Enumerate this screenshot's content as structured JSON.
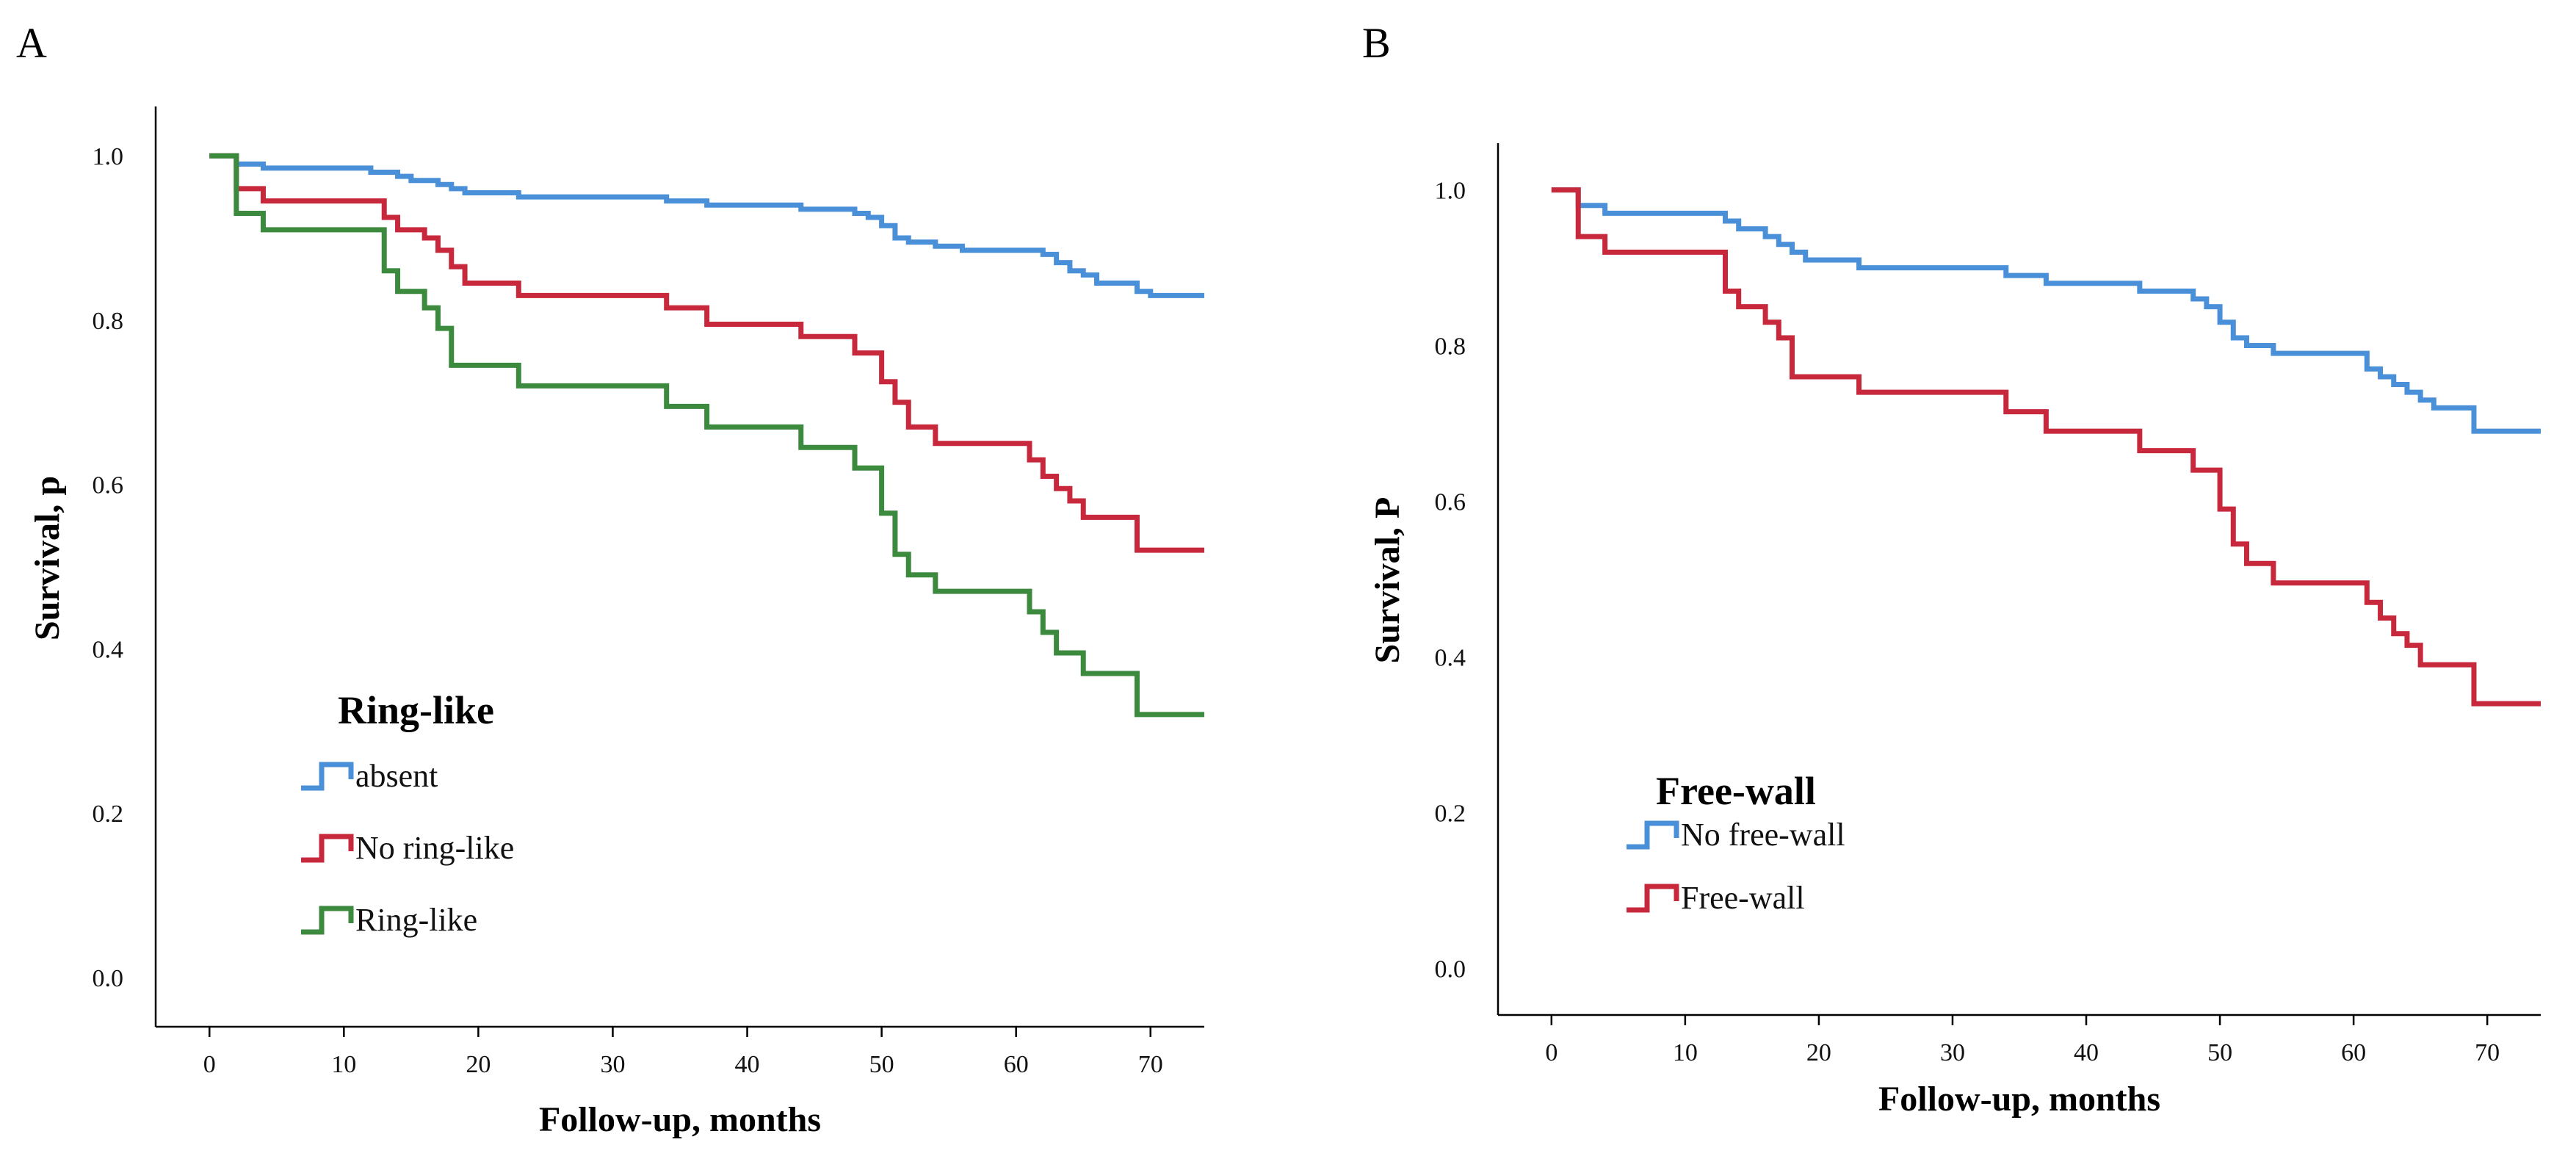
{
  "colors": {
    "absent": "#4a90d9",
    "no_ring": "#c8283c",
    "ring": "#3b8a3e",
    "no_free_wall": "#4a90d9",
    "free_wall": "#c8283c"
  },
  "chart_data": [
    {
      "type": "line",
      "panel_label": "A",
      "xlabel": "Follow-up, months",
      "ylabel": "Survival, p",
      "xlim": [
        -4,
        74
      ],
      "ylim": [
        -0.06,
        1.06
      ],
      "xticks": [
        0,
        10,
        20,
        30,
        40,
        50,
        60,
        70
      ],
      "xtick_labels": [
        "0",
        "10",
        "20",
        "30",
        "40",
        "50",
        "60",
        "70"
      ],
      "yticks": [
        0.0,
        0.2,
        0.4,
        0.6,
        0.8,
        1.0
      ],
      "ytick_labels": [
        "0.0",
        "0.2",
        "0.4",
        "0.6",
        "0.8",
        "1.0"
      ],
      "legend_title": "Ring-like",
      "series": [
        {
          "name": "absent",
          "color": "#4a90d9",
          "points": [
            [
              0,
              1.0
            ],
            [
              2,
              0.99
            ],
            [
              4,
              0.985
            ],
            [
              12,
              0.98
            ],
            [
              14,
              0.975
            ],
            [
              15,
              0.97
            ],
            [
              17,
              0.965
            ],
            [
              18,
              0.96
            ],
            [
              19,
              0.955
            ],
            [
              23,
              0.95
            ],
            [
              34,
              0.945
            ],
            [
              37,
              0.94
            ],
            [
              44,
              0.935
            ],
            [
              48,
              0.93
            ],
            [
              49,
              0.925
            ],
            [
              50,
              0.915
            ],
            [
              51,
              0.9
            ],
            [
              52,
              0.895
            ],
            [
              54,
              0.89
            ],
            [
              56,
              0.885
            ],
            [
              62,
              0.88
            ],
            [
              63,
              0.87
            ],
            [
              64,
              0.86
            ],
            [
              65,
              0.855
            ],
            [
              66,
              0.845
            ],
            [
              69,
              0.835
            ],
            [
              70,
              0.83
            ],
            [
              74,
              0.83
            ]
          ]
        },
        {
          "name": "No ring-like",
          "color": "#c8283c",
          "points": [
            [
              0,
              1.0
            ],
            [
              2,
              0.96
            ],
            [
              4,
              0.945
            ],
            [
              13,
              0.925
            ],
            [
              14,
              0.91
            ],
            [
              16,
              0.9
            ],
            [
              17,
              0.885
            ],
            [
              18,
              0.865
            ],
            [
              19,
              0.845
            ],
            [
              23,
              0.83
            ],
            [
              34,
              0.815
            ],
            [
              37,
              0.795
            ],
            [
              44,
              0.78
            ],
            [
              48,
              0.76
            ],
            [
              50,
              0.725
            ],
            [
              51,
              0.7
            ],
            [
              52,
              0.67
            ],
            [
              54,
              0.65
            ],
            [
              61,
              0.63
            ],
            [
              62,
              0.61
            ],
            [
              63,
              0.595
            ],
            [
              64,
              0.58
            ],
            [
              65,
              0.56
            ],
            [
              69,
              0.52
            ],
            [
              74,
              0.52
            ]
          ]
        },
        {
          "name": "Ring-like",
          "color": "#3b8a3e",
          "points": [
            [
              0,
              1.0
            ],
            [
              2,
              0.93
            ],
            [
              4,
              0.91
            ],
            [
              13,
              0.86
            ],
            [
              14,
              0.835
            ],
            [
              16,
              0.815
            ],
            [
              17,
              0.79
            ],
            [
              18,
              0.745
            ],
            [
              23,
              0.72
            ],
            [
              34,
              0.695
            ],
            [
              37,
              0.67
            ],
            [
              44,
              0.645
            ],
            [
              48,
              0.62
            ],
            [
              50,
              0.565
            ],
            [
              51,
              0.515
            ],
            [
              52,
              0.49
            ],
            [
              54,
              0.47
            ],
            [
              61,
              0.445
            ],
            [
              62,
              0.42
            ],
            [
              63,
              0.395
            ],
            [
              65,
              0.37
            ],
            [
              69,
              0.32
            ],
            [
              74,
              0.32
            ]
          ]
        }
      ]
    },
    {
      "type": "line",
      "panel_label": "B",
      "xlabel": "Follow-up, months",
      "ylabel": "Survival, P",
      "xlim": [
        -4,
        74
      ],
      "ylim": [
        -0.06,
        1.06
      ],
      "xticks": [
        0,
        10,
        20,
        30,
        40,
        50,
        60,
        70
      ],
      "xtick_labels": [
        "0",
        "10",
        "20",
        "30",
        "40",
        "50",
        "60",
        "70"
      ],
      "yticks": [
        0.0,
        0.2,
        0.4,
        0.6,
        0.8,
        1.0
      ],
      "ytick_labels": [
        "0.0",
        "0.2",
        "0.4",
        "0.6",
        "0.8",
        "1.0"
      ],
      "legend_title": "Free-wall",
      "series": [
        {
          "name": "No free-wall",
          "color": "#4a90d9",
          "points": [
            [
              0,
              1.0
            ],
            [
              2,
              0.98
            ],
            [
              4,
              0.97
            ],
            [
              13,
              0.96
            ],
            [
              14,
              0.95
            ],
            [
              16,
              0.94
            ],
            [
              17,
              0.93
            ],
            [
              18,
              0.92
            ],
            [
              19,
              0.91
            ],
            [
              23,
              0.9
            ],
            [
              34,
              0.89
            ],
            [
              37,
              0.88
            ],
            [
              44,
              0.87
            ],
            [
              48,
              0.86
            ],
            [
              49,
              0.85
            ],
            [
              50,
              0.83
            ],
            [
              51,
              0.81
            ],
            [
              52,
              0.8
            ],
            [
              54,
              0.79
            ],
            [
              61,
              0.77
            ],
            [
              62,
              0.76
            ],
            [
              63,
              0.75
            ],
            [
              64,
              0.74
            ],
            [
              65,
              0.73
            ],
            [
              66,
              0.72
            ],
            [
              69,
              0.69
            ],
            [
              74,
              0.69
            ]
          ]
        },
        {
          "name": "Free-wall",
          "color": "#c8283c",
          "points": [
            [
              0,
              1.0
            ],
            [
              2,
              0.94
            ],
            [
              4,
              0.92
            ],
            [
              13,
              0.87
            ],
            [
              14,
              0.85
            ],
            [
              16,
              0.83
            ],
            [
              17,
              0.81
            ],
            [
              18,
              0.76
            ],
            [
              23,
              0.74
            ],
            [
              34,
              0.715
            ],
            [
              37,
              0.69
            ],
            [
              44,
              0.665
            ],
            [
              48,
              0.64
            ],
            [
              50,
              0.59
            ],
            [
              51,
              0.545
            ],
            [
              52,
              0.52
            ],
            [
              54,
              0.495
            ],
            [
              61,
              0.47
            ],
            [
              62,
              0.45
            ],
            [
              63,
              0.43
            ],
            [
              64,
              0.415
            ],
            [
              65,
              0.39
            ],
            [
              69,
              0.34
            ],
            [
              74,
              0.34
            ]
          ]
        }
      ]
    }
  ]
}
